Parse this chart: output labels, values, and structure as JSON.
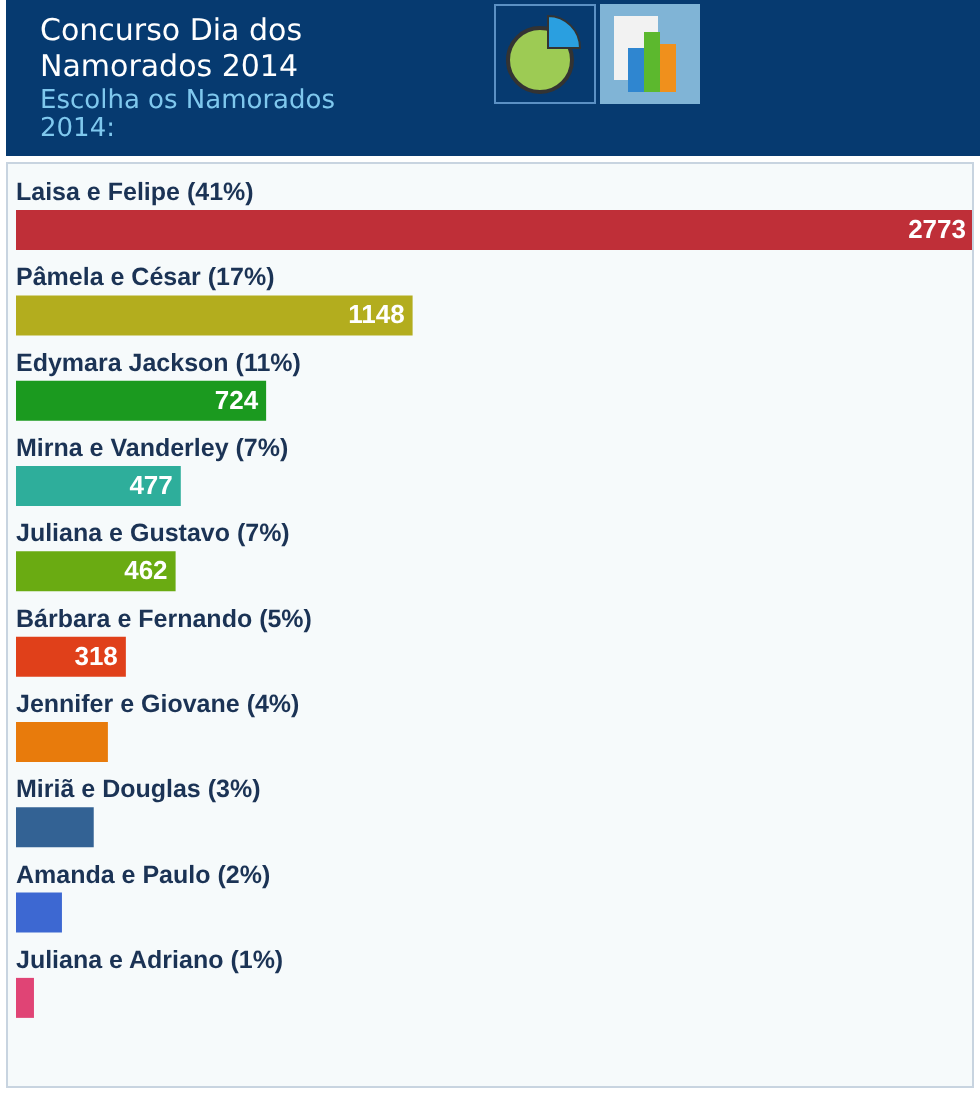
{
  "chart_data": {
    "type": "bar",
    "orientation": "horizontal",
    "title": "Concurso Dia dos Namorados 2014",
    "subtitle": "Escolha os Namorados 2014:",
    "categories": [
      "Laisa e Felipe (41%)",
      "Pâmela e César (17%)",
      "Edymara Jackson (11%)",
      "Mirna e Vanderley (7%)",
      "Juliana e Gustavo (7%)",
      "Bárbara e Fernando (5%)",
      "Jennifer e Giovane (4%)",
      "Miriã e Douglas (3%)",
      "Amanda e Paulo (2%)",
      "Juliana e Adriano (1%)"
    ],
    "values": [
      2773,
      1148,
      724,
      477,
      462,
      318,
      266,
      225,
      133,
      52
    ],
    "value_labels": [
      "2773",
      "1148",
      "724",
      "477",
      "462",
      "318",
      null,
      null,
      null,
      null
    ],
    "colors": [
      "#bf2f38",
      "#b3ad1e",
      "#1b9a1f",
      "#2eae9b",
      "#6aab12",
      "#e0401a",
      "#e87b0c",
      "#336294",
      "#3d68d2",
      "#e04475"
    ]
  }
}
